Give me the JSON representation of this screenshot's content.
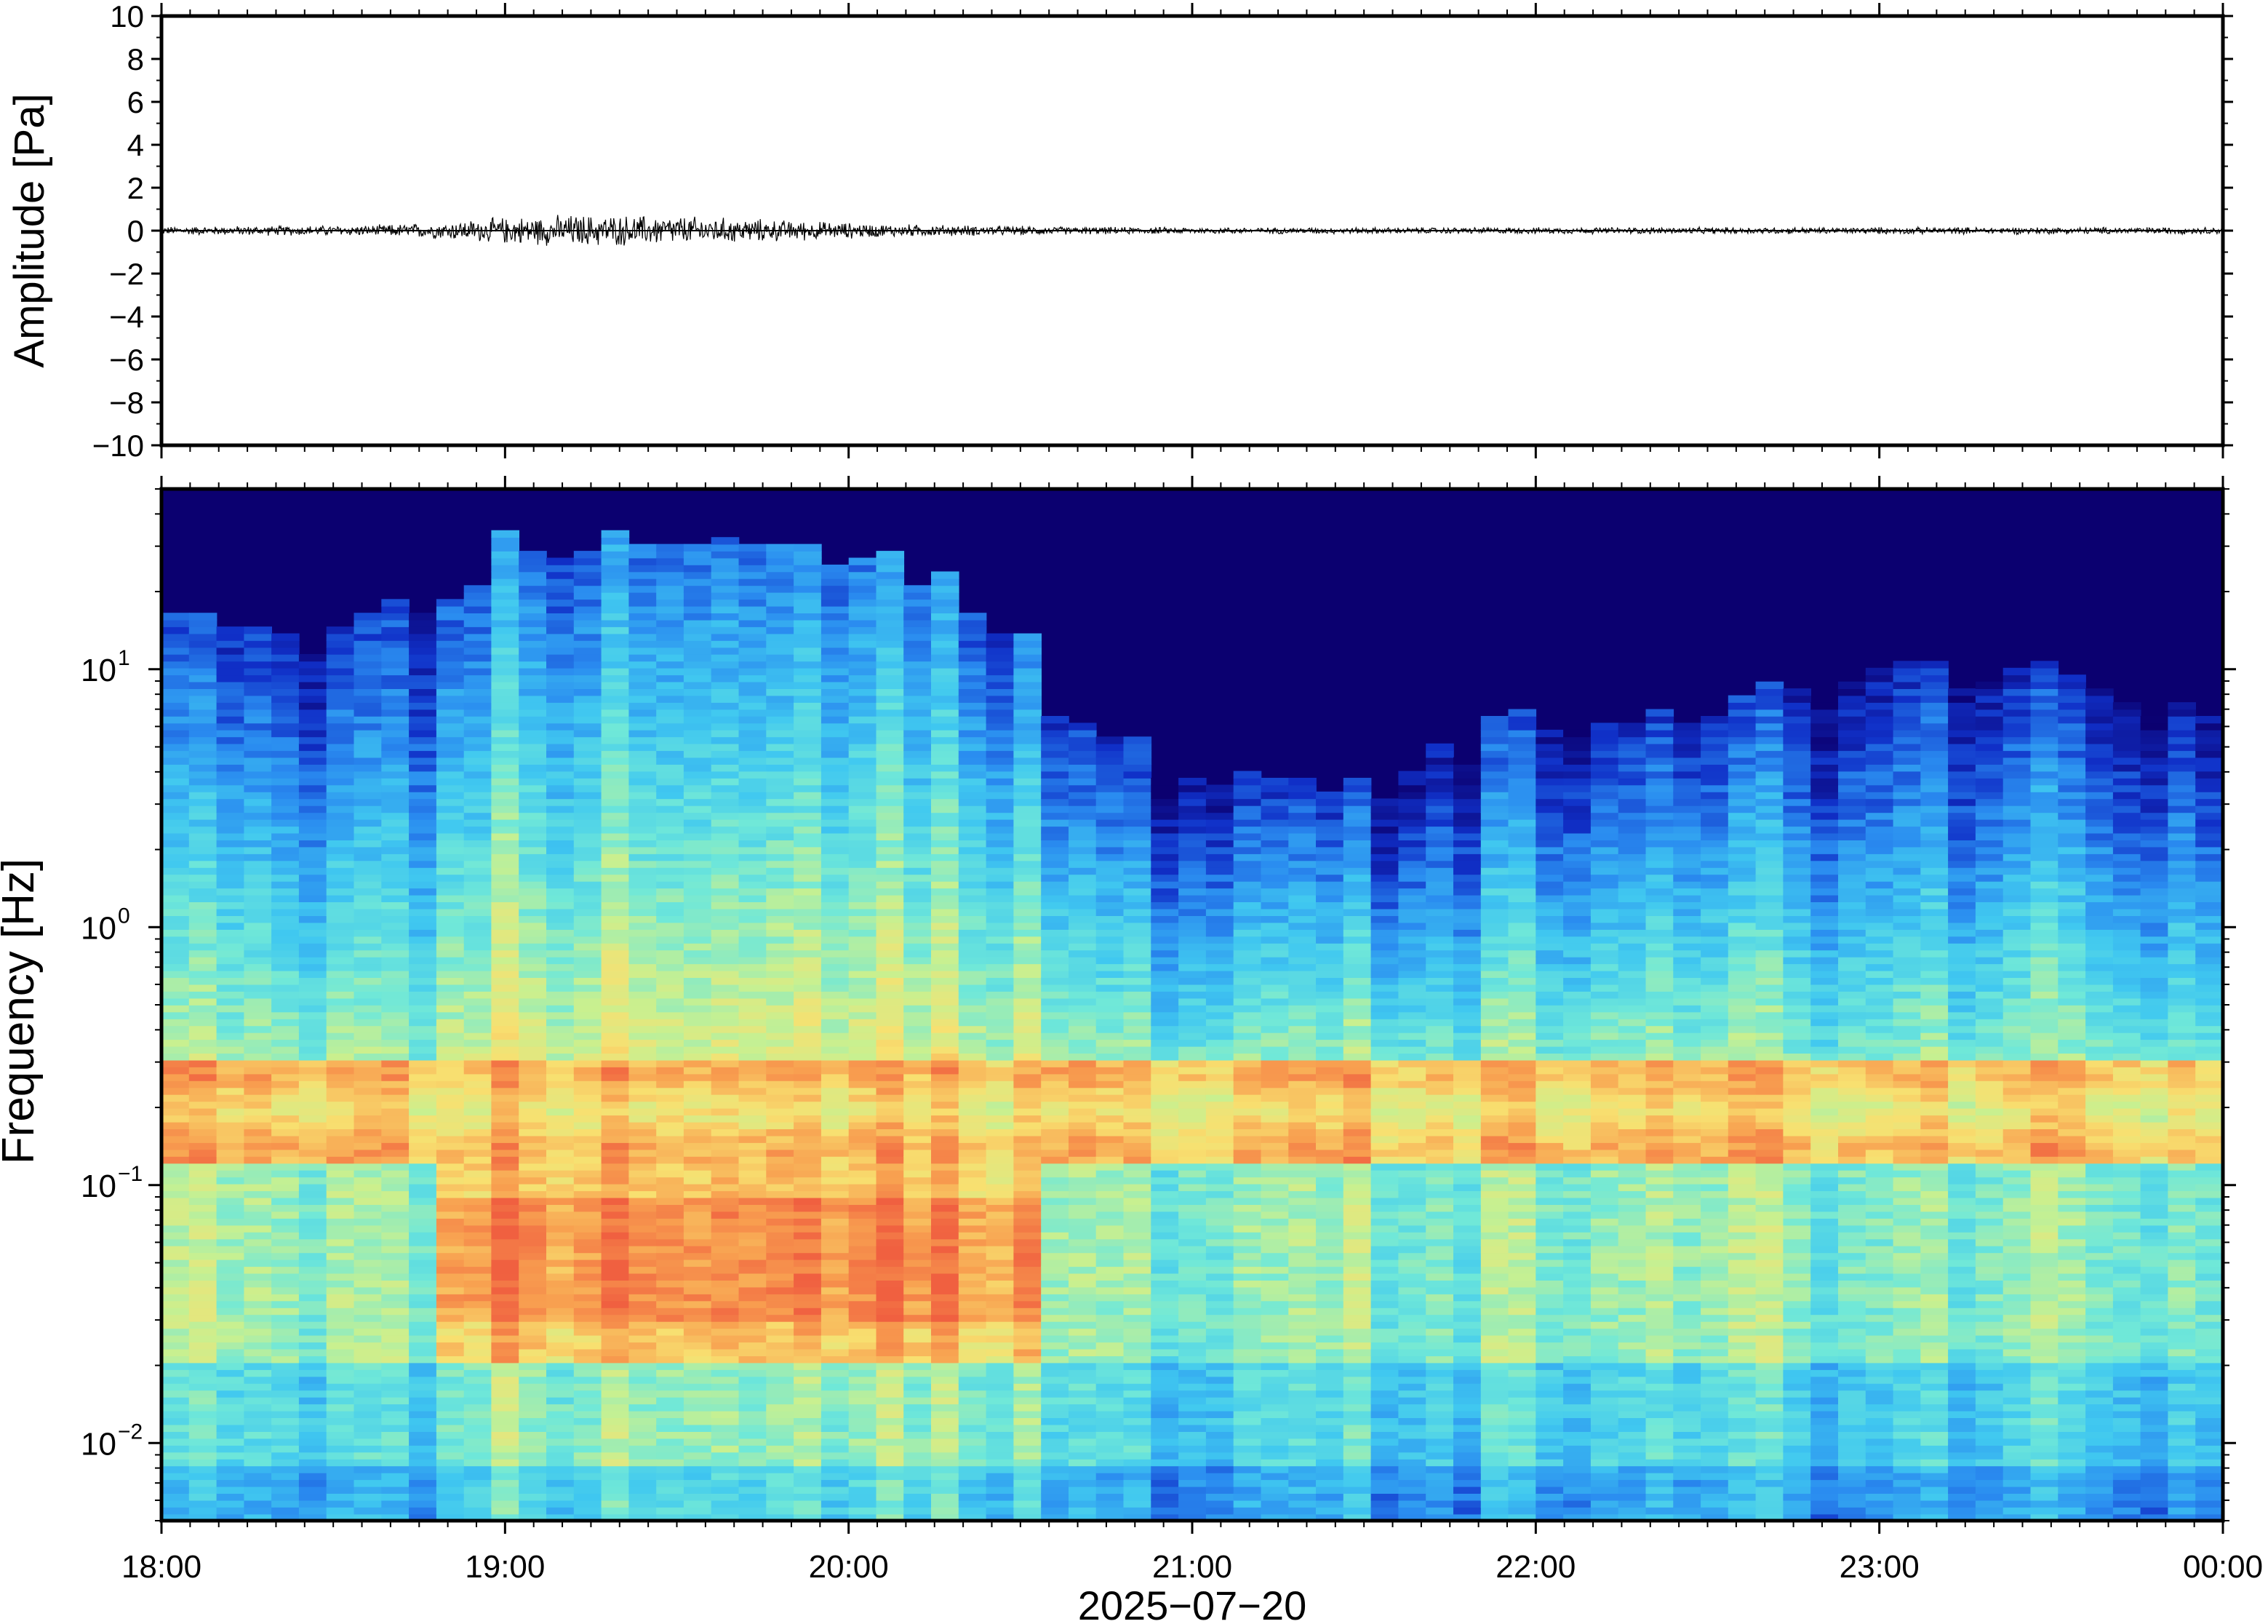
{
  "chart_data": [
    {
      "type": "line",
      "name": "waveform",
      "ylabel": "Amplitude [Pa]",
      "ylim": [
        -10,
        10
      ],
      "yticks": [
        10,
        8,
        6,
        4,
        2,
        0,
        -2,
        -4,
        -6,
        -8,
        -10
      ],
      "ytick_labels": [
        "10",
        "8",
        "6",
        "4",
        "2",
        "0",
        "−2",
        "−4",
        "−6",
        "−8",
        "−10"
      ],
      "x_range_hours": [
        18,
        24
      ],
      "envelope": [
        {
          "t": 18.0,
          "a": 0.15
        },
        {
          "t": 18.3,
          "a": 0.18
        },
        {
          "t": 18.6,
          "a": 0.2
        },
        {
          "t": 18.8,
          "a": 0.3
        },
        {
          "t": 19.0,
          "a": 0.5
        },
        {
          "t": 19.2,
          "a": 0.6
        },
        {
          "t": 19.5,
          "a": 0.55
        },
        {
          "t": 19.8,
          "a": 0.4
        },
        {
          "t": 20.1,
          "a": 0.25
        },
        {
          "t": 20.6,
          "a": 0.15
        },
        {
          "t": 21.0,
          "a": 0.12
        },
        {
          "t": 22.0,
          "a": 0.12
        },
        {
          "t": 23.0,
          "a": 0.13
        },
        {
          "t": 24.0,
          "a": 0.13
        }
      ],
      "grid": false
    },
    {
      "type": "heatmap",
      "name": "spectrogram",
      "ylabel": "Frequency [Hz]",
      "yscale": "log",
      "ylim": [
        0.005,
        50
      ],
      "yticks": [
        {
          "value": 10,
          "base": "10",
          "exp": "1"
        },
        {
          "value": 1,
          "base": "10",
          "exp": "0"
        },
        {
          "value": 0.1,
          "base": "10",
          "exp": "−1"
        },
        {
          "value": 0.01,
          "base": "10",
          "exp": "−2"
        }
      ],
      "xlabel": "2025−07−20",
      "xticks": [
        {
          "value": 18,
          "label": "18:00"
        },
        {
          "value": 19,
          "label": "19:00"
        },
        {
          "value": 20,
          "label": "20:00"
        },
        {
          "value": 21,
          "label": "21:00"
        },
        {
          "value": 22,
          "label": "22:00"
        },
        {
          "value": 23,
          "label": "23:00"
        },
        {
          "value": 24,
          "label": "00:00"
        }
      ],
      "x_range_hours": [
        18,
        24
      ],
      "colormap": [
        "#0b0070",
        "#1030c8",
        "#2a8cf0",
        "#40c8f0",
        "#70e8d8",
        "#c8f090",
        "#f8e070",
        "#f8a050",
        "#f06040"
      ],
      "high_freq_cutoff_hz": [
        {
          "t": 18.0,
          "f": 14
        },
        {
          "t": 18.5,
          "f": 12
        },
        {
          "t": 18.9,
          "f": 20
        },
        {
          "t": 19.0,
          "f": 28
        },
        {
          "t": 19.6,
          "f": 30
        },
        {
          "t": 20.0,
          "f": 26
        },
        {
          "t": 20.5,
          "f": 14
        },
        {
          "t": 20.6,
          "f": 6
        },
        {
          "t": 21.0,
          "f": 4
        },
        {
          "t": 21.5,
          "f": 3
        },
        {
          "t": 21.7,
          "f": 5
        },
        {
          "t": 22.0,
          "f": 6
        },
        {
          "t": 22.5,
          "f": 6
        },
        {
          "t": 23.0,
          "f": 10
        },
        {
          "t": 23.5,
          "f": 9
        },
        {
          "t": 24.0,
          "f": 7
        }
      ],
      "grid": false
    }
  ]
}
